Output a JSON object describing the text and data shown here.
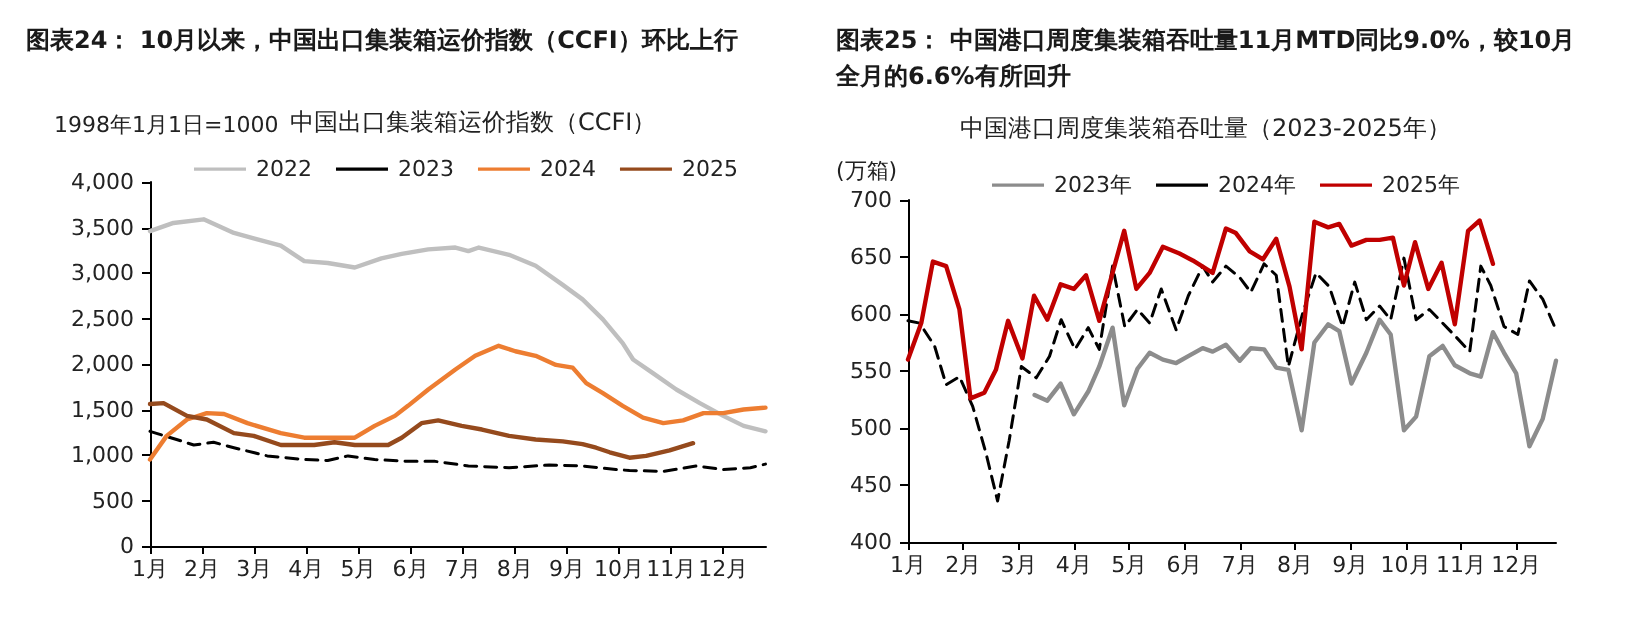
{
  "chart_data": [
    {
      "type": "line",
      "title": "图表24： 10月以来，中国出口集装箱运价指数（CCFI）环比上行",
      "subtitle": "中国出口集装箱运价指数（CCFI）",
      "ylabel": "1998年1月1日=1000",
      "xlim": [
        1,
        12.82
      ],
      "xticks": [
        {
          "value": 1,
          "label": "1月"
        },
        {
          "value": 2,
          "label": "2月"
        },
        {
          "value": 3,
          "label": "3月"
        },
        {
          "value": 4,
          "label": "4月"
        },
        {
          "value": 5,
          "label": "5月"
        },
        {
          "value": 6,
          "label": "6月"
        },
        {
          "value": 7,
          "label": "7月"
        },
        {
          "value": 8,
          "label": "8月"
        },
        {
          "value": 9,
          "label": "9月"
        },
        {
          "value": 10,
          "label": "10月"
        },
        {
          "value": 11,
          "label": "11月"
        },
        {
          "value": 12,
          "label": "12月"
        }
      ],
      "ylim": [
        0,
        4000
      ],
      "yticks": [
        {
          "value": 0,
          "label": "0"
        },
        {
          "value": 500,
          "label": "500"
        },
        {
          "value": 1000,
          "label": "1,000"
        },
        {
          "value": 1500,
          "label": "1,500"
        },
        {
          "value": 2000,
          "label": "2,000"
        },
        {
          "value": 2500,
          "label": "2,500"
        },
        {
          "value": 3000,
          "label": "3,000"
        },
        {
          "value": 3500,
          "label": "3,500"
        },
        {
          "value": 4000,
          "label": "4,000"
        }
      ],
      "grid": false,
      "legend": "top",
      "marker": "none",
      "series": [
        {
          "name": "2022",
          "color": "#bfbfbf",
          "x": [
            1,
            1.45,
            2.03,
            2.61,
            2.99,
            3.51,
            3.96,
            4.41,
            4.93,
            5.44,
            5.83,
            6.34,
            6.86,
            7.11,
            7.31,
            7.89,
            8.4,
            8.92,
            9.3,
            9.69,
            10.07,
            10.27,
            10.65,
            11.1,
            11.55,
            12,
            12.39,
            12.81
          ],
          "values": [
            3460,
            3550,
            3590,
            3440,
            3380,
            3300,
            3130,
            3110,
            3060,
            3160,
            3210,
            3260,
            3280,
            3240,
            3280,
            3200,
            3080,
            2870,
            2710,
            2490,
            2230,
            2050,
            1900,
            1720,
            1570,
            1430,
            1320,
            1260
          ]
        },
        {
          "name": "2023",
          "color": "#000000",
          "line_style": "dashed",
          "x": [
            1,
            1.51,
            1.84,
            2.22,
            2.61,
            3.25,
            3.96,
            4.41,
            4.8,
            5.31,
            5.95,
            6.47,
            7.11,
            7.89,
            8.66,
            9.3,
            9.94,
            10.2,
            10.85,
            11.49,
            12,
            12.52,
            12.81
          ],
          "values": [
            1260,
            1170,
            1110,
            1140,
            1080,
            990,
            950,
            940,
            990,
            950,
            930,
            930,
            880,
            860,
            890,
            880,
            840,
            830,
            820,
            880,
            840,
            860,
            900
          ]
        },
        {
          "name": "2024",
          "color": "#ed7d31",
          "x": [
            1,
            1.32,
            1.71,
            2.09,
            2.42,
            2.87,
            3.51,
            3.96,
            4.41,
            4.93,
            5.31,
            5.7,
            5.95,
            6.34,
            6.86,
            7.24,
            7.69,
            8.01,
            8.4,
            8.79,
            9.11,
            9.37,
            9.69,
            10.07,
            10.46,
            10.85,
            11.23,
            11.62,
            12,
            12.39,
            12.81
          ],
          "values": [
            950,
            1210,
            1390,
            1460,
            1450,
            1350,
            1240,
            1190,
            1190,
            1190,
            1320,
            1430,
            1540,
            1720,
            1940,
            2090,
            2200,
            2140,
            2090,
            1990,
            1960,
            1790,
            1680,
            1540,
            1410,
            1350,
            1380,
            1460,
            1460,
            1500,
            1520
          ]
        },
        {
          "name": "2025",
          "color": "#954a1d",
          "x": [
            1,
            1.26,
            1.71,
            2.09,
            2.61,
            2.99,
            3.51,
            4.15,
            4.54,
            4.93,
            5.57,
            5.83,
            6.21,
            6.53,
            6.98,
            7.37,
            7.89,
            8.4,
            8.92,
            9.3,
            9.56,
            9.82,
            10.2,
            10.52,
            10.97,
            11.42
          ],
          "values": [
            1560,
            1570,
            1430,
            1390,
            1240,
            1210,
            1110,
            1110,
            1140,
            1110,
            1110,
            1190,
            1350,
            1380,
            1320,
            1280,
            1210,
            1170,
            1150,
            1120,
            1080,
            1030,
            970,
            990,
            1050,
            1130
          ]
        }
      ]
    },
    {
      "type": "line",
      "title": "图表25： 中国港口周度集装箱吞吐量11月MTD同比9.0%，较10月全月的6.6%有所回升",
      "subtitle": "中国港口周度集装箱吞吐量（2023-2025年）",
      "ylabel": "(万箱)",
      "xlim": [
        1,
        12.72
      ],
      "xticks": [
        {
          "value": 1,
          "label": "1月"
        },
        {
          "value": 2,
          "label": "2月"
        },
        {
          "value": 3,
          "label": "3月"
        },
        {
          "value": 4,
          "label": "4月"
        },
        {
          "value": 5,
          "label": "5月"
        },
        {
          "value": 6,
          "label": "6月"
        },
        {
          "value": 7,
          "label": "7月"
        },
        {
          "value": 8,
          "label": "8月"
        },
        {
          "value": 9,
          "label": "9月"
        },
        {
          "value": 10,
          "label": "10月"
        },
        {
          "value": 11,
          "label": "11月"
        },
        {
          "value": 12,
          "label": "12月"
        }
      ],
      "ylim": [
        400,
        700
      ],
      "yticks": [
        400,
        450,
        500,
        550,
        600,
        650,
        700
      ],
      "grid": false,
      "legend": "top",
      "marker": "none",
      "series": [
        {
          "name": "2023年",
          "color": "#8c8c8c",
          "x": [
            3.29,
            3.52,
            3.76,
            4,
            4.26,
            4.46,
            4.7,
            4.91,
            5.15,
            5.37,
            5.61,
            5.85,
            6.07,
            6.33,
            6.51,
            6.75,
            7,
            7.2,
            7.44,
            7.66,
            7.88,
            8.12,
            8.35,
            8.6,
            8.8,
            9.02,
            9.29,
            9.53,
            9.73,
            9.97,
            10.19,
            10.43,
            10.67,
            10.89,
            11.16,
            11.36,
            11.58,
            11.78,
            12,
            12.24,
            12.48,
            12.72
          ],
          "values": [
            529,
            524,
            539,
            512,
            532,
            554,
            588,
            520,
            552,
            566,
            560,
            557,
            563,
            570,
            567,
            573,
            559,
            570,
            569,
            553,
            551,
            498,
            575,
            591,
            585,
            539,
            566,
            595,
            582,
            498,
            510,
            563,
            572,
            555,
            548,
            545,
            584,
            566,
            548,
            484,
            508,
            559
          ]
        },
        {
          "name": "2024年",
          "color": "#000000",
          "line_style": "dashed",
          "x": [
            1,
            1.21,
            1.48,
            1.69,
            1.93,
            2.17,
            2.41,
            2.62,
            2.83,
            3.05,
            3.32,
            3.56,
            3.77,
            4.02,
            4.26,
            4.46,
            4.7,
            4.92,
            5.15,
            5.37,
            5.58,
            5.85,
            6.07,
            6.33,
            6.51,
            6.75,
            7,
            7.2,
            7.44,
            7.66,
            7.88,
            8.14,
            8.38,
            8.62,
            8.86,
            9.08,
            9.29,
            9.53,
            9.73,
            9.97,
            10.19,
            10.43,
            10.67,
            10.89,
            11.16,
            11.36,
            11.54,
            11.78,
            12.03,
            12.24,
            12.48,
            12.72
          ],
          "values": [
            594,
            592,
            572,
            538,
            545,
            519,
            478,
            436,
            489,
            554,
            544,
            563,
            595,
            569,
            588,
            569,
            642,
            589,
            604,
            592,
            622,
            586,
            616,
            642,
            628,
            642,
            632,
            619,
            644,
            634,
            554,
            601,
            636,
            624,
            589,
            628,
            595,
            607,
            595,
            649,
            595,
            604,
            592,
            581,
            567,
            642,
            625,
            589,
            582,
            629,
            613,
            586
          ]
        },
        {
          "name": "2025年",
          "color": "#c00000",
          "x": [
            1,
            1.24,
            1.45,
            1.69,
            1.93,
            2.13,
            2.38,
            2.59,
            2.81,
            3.07,
            3.28,
            3.52,
            3.76,
            4,
            4.22,
            4.46,
            4.91,
            5.13,
            5.37,
            5.61,
            5.91,
            6.15,
            6.51,
            6.75,
            6.93,
            7.18,
            7.42,
            7.66,
            7.9,
            8.12,
            8.35,
            8.6,
            8.8,
            9.02,
            9.29,
            9.53,
            9.77,
            9.97,
            10.17,
            10.41,
            10.65,
            10.89,
            11.13,
            11.34,
            11.58
          ],
          "values": [
            560,
            592,
            646,
            642,
            604,
            526,
            531,
            551,
            594,
            561,
            616,
            595,
            626,
            622,
            634,
            594,
            673,
            622,
            636,
            659,
            653,
            647,
            636,
            675,
            671,
            655,
            648,
            666,
            624,
            569,
            681,
            676,
            679,
            660,
            665,
            665,
            667,
            625,
            663,
            622,
            645,
            591,
            673,
            682,
            644
          ]
        }
      ]
    }
  ]
}
